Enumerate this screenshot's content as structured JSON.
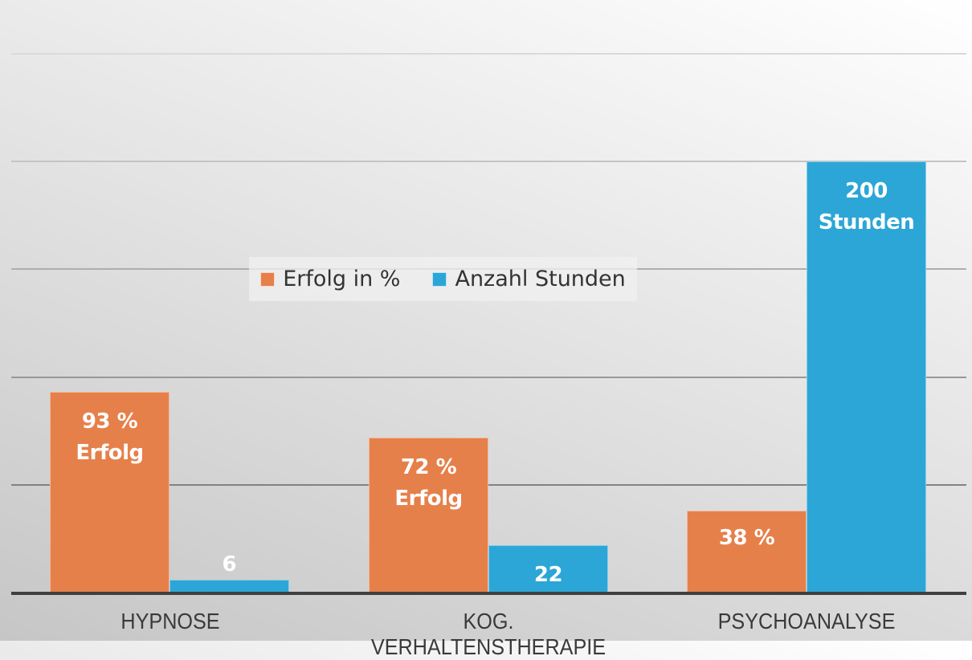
{
  "chart_data": {
    "type": "bar",
    "title": "",
    "xlabel": "",
    "ylabel": "",
    "ylim": [
      0,
      250
    ],
    "grid": true,
    "gridlines": [
      50,
      100,
      150,
      200,
      250
    ],
    "legend_position": "center-upper",
    "categories": [
      "HYPNOSE",
      "KOG. VERHALTENSTHERAPIE",
      "PSYCHOANALYSE"
    ],
    "series": [
      {
        "name": "Erfolg in %",
        "color": "#E6804A",
        "values": [
          93,
          72,
          38
        ],
        "data_labels": [
          [
            "93 %",
            "Erfolg"
          ],
          [
            "72 %",
            "Erfolg"
          ],
          [
            "38 %"
          ]
        ]
      },
      {
        "name": "Anzahl Stunden",
        "color": "#2CA6D6",
        "values": [
          6,
          22,
          200
        ],
        "data_labels": [
          [
            "6"
          ],
          [
            "22"
          ],
          [
            "200",
            "Stunden"
          ]
        ]
      }
    ]
  },
  "legend": {
    "items": [
      {
        "label": "Erfolg in %",
        "color": "#E6804A"
      },
      {
        "label": "Anzahl Stunden",
        "color": "#2CA6D6"
      }
    ]
  }
}
